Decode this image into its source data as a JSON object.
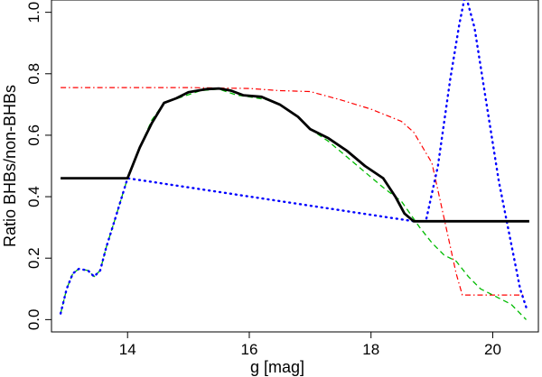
{
  "chart_data": {
    "type": "line",
    "title": "",
    "xlabel": "g [mag]",
    "ylabel": "Ratio BHBs/non-BHBs",
    "xlim": [
      12.75,
      20.75
    ],
    "ylim": [
      -0.04,
      1.04
    ],
    "grid": false,
    "legend": "none",
    "x_ticks": [
      14,
      16,
      18,
      20
    ],
    "x_tick_labels": [
      "14",
      "16",
      "18",
      "20"
    ],
    "y_ticks": [
      0.0,
      0.2,
      0.4,
      0.6,
      0.8,
      1.0
    ],
    "y_tick_labels": [
      "0.0",
      "0.2",
      "0.4",
      "0.6",
      "0.8",
      "1.0"
    ],
    "series": [
      {
        "color": "#ff0000",
        "style": "dashdot",
        "width": 1.2,
        "points": [
          [
            12.9,
            0.755
          ],
          [
            14.0,
            0.755
          ],
          [
            15.0,
            0.755
          ],
          [
            16.0,
            0.752
          ],
          [
            16.5,
            0.745
          ],
          [
            17.0,
            0.742
          ],
          [
            17.5,
            0.715
          ],
          [
            18.0,
            0.685
          ],
          [
            18.5,
            0.645
          ],
          [
            18.7,
            0.61
          ],
          [
            19.0,
            0.51
          ],
          [
            19.2,
            0.33
          ],
          [
            19.3,
            0.24
          ],
          [
            19.4,
            0.15
          ],
          [
            19.5,
            0.08
          ],
          [
            20.0,
            0.08
          ],
          [
            20.5,
            0.08
          ]
        ]
      },
      {
        "color": "#00bb00",
        "style": "dashed",
        "width": 1.3,
        "points": [
          [
            12.9,
            0.02
          ],
          [
            13.0,
            0.1
          ],
          [
            13.1,
            0.15
          ],
          [
            13.2,
            0.165
          ],
          [
            13.35,
            0.16
          ],
          [
            13.45,
            0.14
          ],
          [
            13.55,
            0.16
          ],
          [
            13.65,
            0.235
          ],
          [
            13.8,
            0.33
          ],
          [
            14.0,
            0.46
          ],
          [
            14.2,
            0.56
          ],
          [
            14.4,
            0.65
          ],
          [
            14.6,
            0.705
          ],
          [
            14.9,
            0.725
          ],
          [
            15.2,
            0.745
          ],
          [
            15.5,
            0.75
          ],
          [
            15.8,
            0.73
          ],
          [
            16.0,
            0.725
          ],
          [
            16.3,
            0.715
          ],
          [
            16.5,
            0.7
          ],
          [
            16.8,
            0.66
          ],
          [
            17.0,
            0.62
          ],
          [
            17.3,
            0.58
          ],
          [
            17.6,
            0.53
          ],
          [
            17.9,
            0.48
          ],
          [
            18.2,
            0.43
          ],
          [
            18.5,
            0.385
          ],
          [
            18.8,
            0.3
          ],
          [
            19.0,
            0.25
          ],
          [
            19.2,
            0.21
          ],
          [
            19.4,
            0.19
          ],
          [
            19.6,
            0.14
          ],
          [
            19.8,
            0.1
          ],
          [
            20.0,
            0.08
          ],
          [
            20.3,
            0.05
          ],
          [
            20.55,
            0.0
          ]
        ]
      },
      {
        "color": "#0000ff",
        "style": "dotted",
        "width": 2.4,
        "points": [
          [
            12.9,
            0.02
          ],
          [
            13.0,
            0.1
          ],
          [
            13.1,
            0.15
          ],
          [
            13.2,
            0.165
          ],
          [
            13.35,
            0.16
          ],
          [
            13.45,
            0.14
          ],
          [
            13.55,
            0.16
          ],
          [
            13.65,
            0.235
          ],
          [
            13.8,
            0.33
          ],
          [
            14.0,
            0.46
          ],
          [
            18.7,
            0.32
          ],
          [
            18.9,
            0.32
          ],
          [
            19.1,
            0.5
          ],
          [
            19.3,
            0.78
          ],
          [
            19.45,
            0.96
          ],
          [
            19.55,
            1.06
          ],
          [
            19.7,
            0.95
          ],
          [
            19.9,
            0.7
          ],
          [
            20.1,
            0.45
          ],
          [
            20.3,
            0.25
          ],
          [
            20.45,
            0.1
          ],
          [
            20.55,
            0.04
          ]
        ]
      },
      {
        "color": "#000000",
        "style": "solid",
        "width": 2.8,
        "points": [
          [
            12.9,
            0.46
          ],
          [
            13.5,
            0.46
          ],
          [
            14.0,
            0.46
          ],
          [
            14.2,
            0.56
          ],
          [
            14.4,
            0.64
          ],
          [
            14.6,
            0.705
          ],
          [
            14.8,
            0.72
          ],
          [
            15.0,
            0.74
          ],
          [
            15.3,
            0.75
          ],
          [
            15.5,
            0.752
          ],
          [
            15.7,
            0.745
          ],
          [
            15.9,
            0.73
          ],
          [
            16.2,
            0.725
          ],
          [
            16.5,
            0.7
          ],
          [
            16.8,
            0.66
          ],
          [
            17.0,
            0.62
          ],
          [
            17.3,
            0.59
          ],
          [
            17.6,
            0.55
          ],
          [
            17.9,
            0.5
          ],
          [
            18.2,
            0.46
          ],
          [
            18.4,
            0.4
          ],
          [
            18.55,
            0.345
          ],
          [
            18.7,
            0.32
          ],
          [
            19.0,
            0.32
          ],
          [
            20.0,
            0.32
          ],
          [
            20.6,
            0.32
          ]
        ]
      }
    ]
  }
}
